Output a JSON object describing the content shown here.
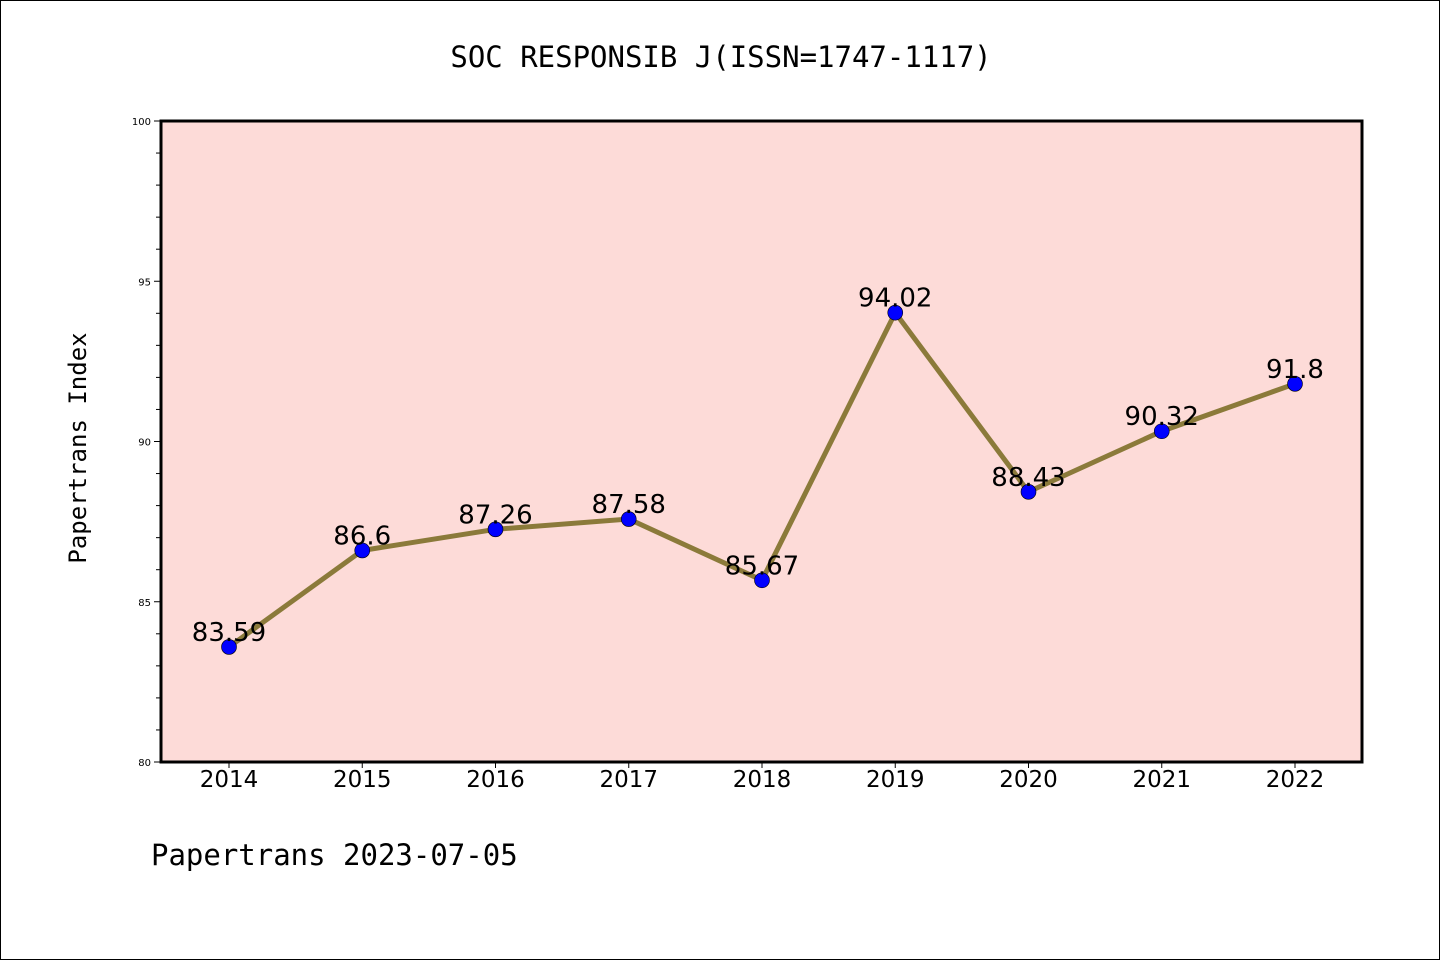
{
  "chart_data": {
    "type": "line",
    "title": "SOC RESPONSIB J(ISSN=1747-1117)",
    "xlabel": "",
    "ylabel": "Papertrans Index",
    "categories": [
      "2014",
      "2015",
      "2016",
      "2017",
      "2018",
      "2019",
      "2020",
      "2021",
      "2022"
    ],
    "values": [
      83.59,
      86.6,
      87.26,
      87.58,
      85.67,
      94.02,
      88.43,
      90.32,
      91.8
    ],
    "data_labels": [
      "83.59",
      "86.6",
      "87.26",
      "87.58",
      "85.67",
      "94.02",
      "88.43",
      "90.32",
      "91.8"
    ],
    "ylim": [
      80,
      100
    ],
    "yticks": [
      "80",
      "85",
      "90",
      "95",
      "100"
    ],
    "grid": false,
    "legend": "none",
    "colors": {
      "plot_background": "#fddbd8",
      "line": "#8b7a3a",
      "marker": "#0000ff"
    }
  },
  "footer": "Papertrans 2023-07-05"
}
